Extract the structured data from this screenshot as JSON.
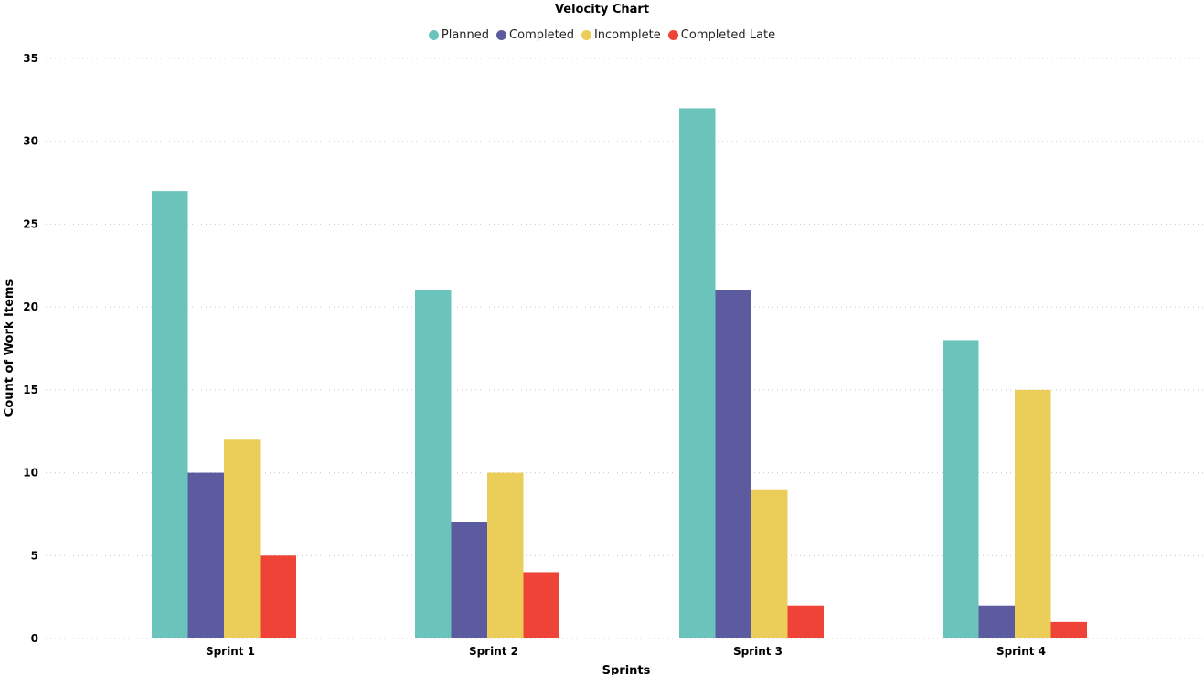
{
  "chart_data": {
    "type": "bar",
    "title": "Velocity Chart",
    "xlabel": "Sprints",
    "ylabel": "Count of Work Items",
    "ylim": [
      0,
      35
    ],
    "yticks": [
      0,
      5,
      10,
      15,
      20,
      25,
      30,
      35
    ],
    "grid": true,
    "legend_position": "top-center",
    "categories": [
      "Sprint 1",
      "Sprint 2",
      "Sprint 3",
      "Sprint 4"
    ],
    "series": [
      {
        "name": "Planned",
        "color": "#6BC4BB",
        "values": [
          27,
          21,
          32,
          18
        ]
      },
      {
        "name": "Completed",
        "color": "#5C5B9F",
        "values": [
          10,
          7,
          21,
          2
        ]
      },
      {
        "name": "Incomplete",
        "color": "#EBCD5A",
        "values": [
          12,
          10,
          9,
          15
        ]
      },
      {
        "name": "Completed Late",
        "color": "#EF4338",
        "values": [
          5,
          4,
          2,
          1
        ]
      }
    ]
  }
}
